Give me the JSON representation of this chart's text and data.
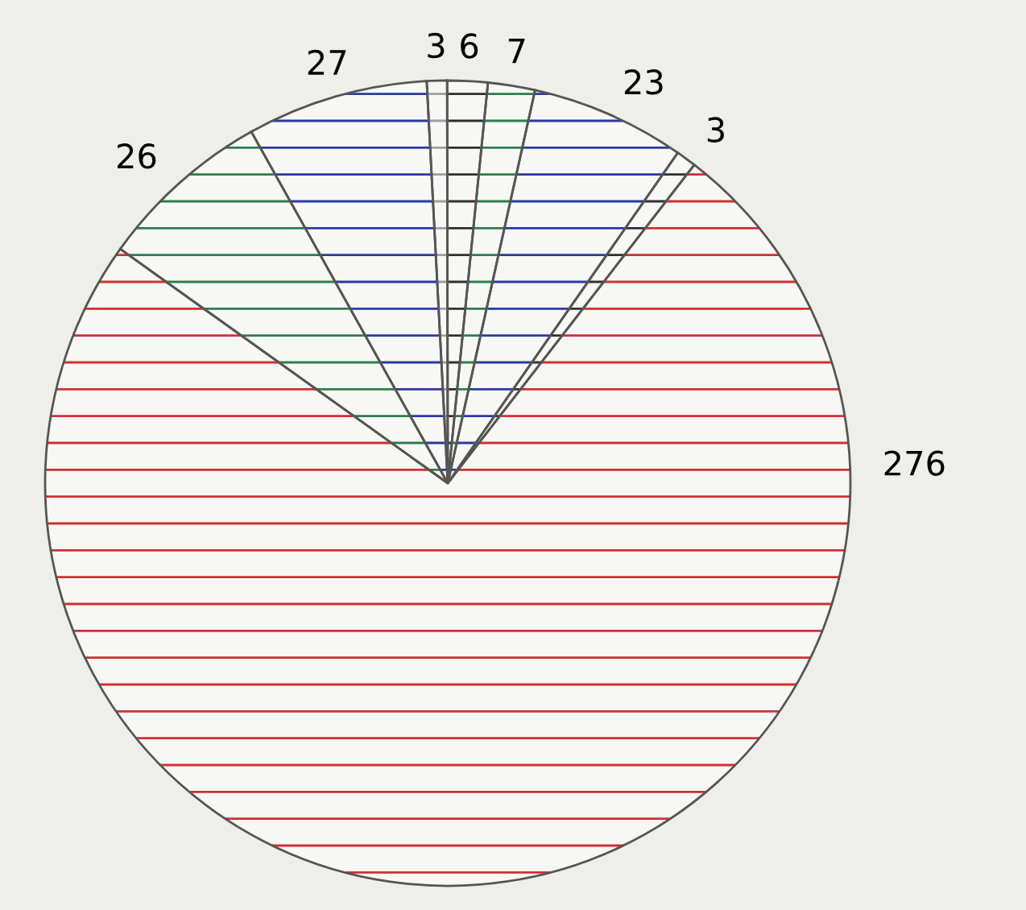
{
  "chart_data": {
    "type": "pie",
    "categories": [
      "3",
      "6",
      "7",
      "23",
      "3",
      "276",
      "26",
      "27"
    ],
    "values": [
      3,
      6,
      7,
      23,
      3,
      276,
      26,
      27
    ],
    "colors": [
      "#a0a0a0",
      "#303030",
      "#2e7d4a",
      "#2b3a9c",
      "#303030",
      "#d03030",
      "#2e7d4a",
      "#2b3a9c"
    ],
    "legend": false
  }
}
